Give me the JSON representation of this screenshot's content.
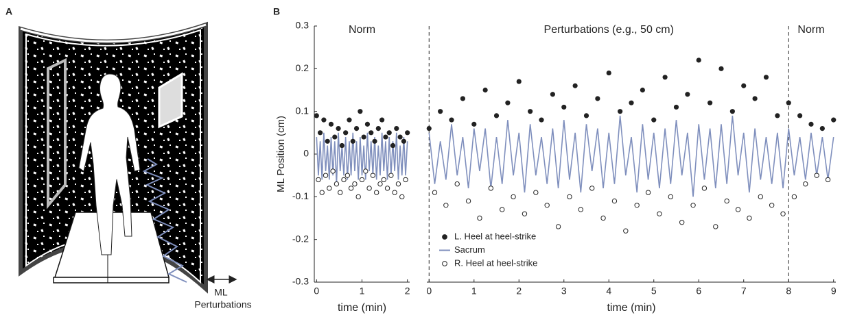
{
  "panels": {
    "a": {
      "label": "A",
      "arrow_label": "ML",
      "arrow_sublabel": "Perturbations"
    },
    "b": {
      "label": "B"
    }
  },
  "chart_data": [
    {
      "type": "scatter",
      "ylabel": "ML Position (cm)",
      "xlabel": "time (min)",
      "xlim": [
        -0.05,
        2.05
      ],
      "xticks": [
        0,
        1,
        2
      ],
      "ylim": [
        -0.3,
        0.3
      ],
      "yticks": [
        0.3,
        0.2,
        0.1,
        0,
        -0.1,
        -0.2,
        -0.3
      ],
      "regions": [
        {
          "label": "Norm",
          "start": 0,
          "end": 2
        }
      ],
      "series": [
        {
          "style": "line",
          "color": "#7f8fbd",
          "x": [
            0,
            0.04,
            0.08,
            0.12,
            0.16,
            0.2,
            0.24,
            0.28,
            0.32,
            0.36,
            0.4,
            0.44,
            0.48,
            0.52,
            0.56,
            0.6,
            0.64,
            0.68,
            0.72,
            0.76,
            0.8,
            0.84,
            0.88,
            0.92,
            0.96,
            1,
            1.04,
            1.08,
            1.12,
            1.16,
            1.2,
            1.24,
            1.28,
            1.32,
            1.36,
            1.4,
            1.44,
            1.48,
            1.52,
            1.56,
            1.6,
            1.64,
            1.68,
            1.72,
            1.76,
            1.8,
            1.84,
            1.88,
            1.92,
            1.96,
            2
          ],
          "values": [
            0.04,
            -0.05,
            0.03,
            -0.06,
            0.05,
            -0.04,
            0.02,
            -0.06,
            0.04,
            -0.05,
            0.03,
            -0.07,
            0.05,
            -0.04,
            0.02,
            -0.05,
            0.04,
            -0.06,
            0.03,
            -0.05,
            0.05,
            -0.04,
            0.03,
            -0.06,
            0.04,
            -0.05,
            0.02,
            -0.06,
            0.05,
            -0.04,
            0.03,
            -0.05,
            0.04,
            -0.06,
            0.02,
            -0.05,
            0.05,
            -0.04,
            0.03,
            -0.06,
            0.04,
            -0.05,
            0.03,
            -0.04,
            0.05,
            -0.06,
            0.02,
            -0.05,
            0.04,
            -0.05,
            0.03
          ]
        },
        {
          "style": "dot",
          "color": "#222222",
          "x": [
            0,
            0.08,
            0.16,
            0.24,
            0.32,
            0.4,
            0.48,
            0.56,
            0.64,
            0.72,
            0.8,
            0.88,
            0.96,
            1.04,
            1.12,
            1.2,
            1.28,
            1.36,
            1.44,
            1.52,
            1.6,
            1.68,
            1.76,
            1.84,
            1.92,
            2
          ],
          "values": [
            0.09,
            0.05,
            0.08,
            0.03,
            0.07,
            0.04,
            0.06,
            0.02,
            0.05,
            0.08,
            0.03,
            0.06,
            0.1,
            0.04,
            0.07,
            0.05,
            0.03,
            0.06,
            0.08,
            0.04,
            0.05,
            0.02,
            0.06,
            0.04,
            0.03,
            0.05
          ]
        },
        {
          "style": "circle",
          "color": "#222222",
          "x": [
            0.04,
            0.12,
            0.2,
            0.28,
            0.36,
            0.44,
            0.52,
            0.6,
            0.68,
            0.76,
            0.84,
            0.92,
            1,
            1.08,
            1.16,
            1.24,
            1.32,
            1.4,
            1.48,
            1.56,
            1.64,
            1.72,
            1.8,
            1.88,
            1.96
          ],
          "values": [
            -0.06,
            -0.09,
            -0.05,
            -0.08,
            -0.04,
            -0.07,
            -0.09,
            -0.06,
            -0.05,
            -0.08,
            -0.07,
            -0.1,
            -0.06,
            -0.04,
            -0.08,
            -0.05,
            -0.09,
            -0.07,
            -0.06,
            -0.08,
            -0.05,
            -0.09,
            -0.07,
            -0.1,
            -0.06
          ]
        }
      ]
    },
    {
      "type": "scatter",
      "xlabel": "time (min)",
      "xlim": [
        -0.05,
        9.05
      ],
      "xticks": [
        0,
        1,
        2,
        3,
        4,
        5,
        6,
        7,
        8,
        9
      ],
      "ylim": [
        -0.3,
        0.3
      ],
      "regions": [
        {
          "label": "Perturbations (e.g., 50 cm)",
          "start": 0,
          "end": 8
        },
        {
          "label": "Norm",
          "start": 8,
          "end": 9
        }
      ],
      "boundaries": [
        0,
        8
      ],
      "legend": "lower left",
      "series": [
        {
          "name": "Sacrum",
          "style": "line",
          "color": "#7f8fbd",
          "x": [
            0,
            0.125,
            0.25,
            0.375,
            0.5,
            0.625,
            0.75,
            0.875,
            1,
            1.125,
            1.25,
            1.375,
            1.5,
            1.625,
            1.75,
            1.875,
            2,
            2.125,
            2.25,
            2.375,
            2.5,
            2.625,
            2.75,
            2.875,
            3,
            3.125,
            3.25,
            3.375,
            3.5,
            3.625,
            3.75,
            3.875,
            4,
            4.125,
            4.25,
            4.375,
            4.5,
            4.625,
            4.75,
            4.875,
            5,
            5.125,
            5.25,
            5.375,
            5.5,
            5.625,
            5.75,
            5.875,
            6,
            6.125,
            6.25,
            6.375,
            6.5,
            6.625,
            6.75,
            6.875,
            7,
            7.125,
            7.25,
            7.375,
            7.5,
            7.625,
            7.75,
            7.875,
            8,
            8.125,
            8.25,
            8.375,
            8.5,
            8.625,
            8.75,
            8.875,
            9
          ],
          "values": [
            0.05,
            -0.07,
            0.03,
            -0.06,
            0.07,
            -0.05,
            0.04,
            -0.08,
            0.06,
            -0.04,
            0.06,
            -0.08,
            0.04,
            -0.07,
            0.08,
            -0.05,
            0.05,
            -0.09,
            0.07,
            -0.05,
            0.04,
            -0.07,
            0.06,
            -0.08,
            0.08,
            -0.06,
            0.05,
            -0.09,
            0.07,
            -0.04,
            0.06,
            -0.08,
            0.05,
            -0.07,
            0.09,
            -0.05,
            0.04,
            -0.09,
            0.07,
            -0.06,
            0.05,
            -0.08,
            0.06,
            -0.07,
            0.08,
            -0.05,
            0.05,
            -0.1,
            0.07,
            -0.06,
            0.06,
            -0.08,
            0.07,
            -0.07,
            0.09,
            -0.05,
            0.05,
            -0.09,
            0.06,
            -0.06,
            0.04,
            -0.07,
            0.05,
            -0.08,
            0.06,
            -0.05,
            0.04,
            -0.06,
            0.05,
            -0.05,
            0.04,
            -0.06,
            0.04
          ]
        },
        {
          "name": "L. Heel at heel-strike",
          "style": "dot",
          "color": "#222222",
          "x": [
            0,
            0.25,
            0.5,
            0.75,
            1,
            1.25,
            1.5,
            1.75,
            2,
            2.25,
            2.5,
            2.75,
            3,
            3.25,
            3.5,
            3.75,
            4,
            4.25,
            4.5,
            4.75,
            5,
            5.25,
            5.5,
            5.75,
            6,
            6.25,
            6.5,
            6.75,
            7,
            7.25,
            7.5,
            7.75,
            8,
            8.25,
            8.5,
            8.75,
            9
          ],
          "values": [
            0.06,
            0.1,
            0.08,
            0.13,
            0.07,
            0.15,
            0.09,
            0.12,
            0.17,
            0.1,
            0.08,
            0.14,
            0.11,
            0.16,
            0.09,
            0.13,
            0.19,
            0.1,
            0.12,
            0.15,
            0.08,
            0.18,
            0.11,
            0.14,
            0.22,
            0.12,
            0.2,
            0.1,
            0.16,
            0.13,
            0.18,
            0.09,
            0.12,
            0.09,
            0.07,
            0.06,
            0.08
          ]
        },
        {
          "name": "R. Heel at heel-strike",
          "style": "circle",
          "color": "#222222",
          "x": [
            0.125,
            0.375,
            0.625,
            0.875,
            1.125,
            1.375,
            1.625,
            1.875,
            2.125,
            2.375,
            2.625,
            2.875,
            3.125,
            3.375,
            3.625,
            3.875,
            4.125,
            4.375,
            4.625,
            4.875,
            5.125,
            5.375,
            5.625,
            5.875,
            6.125,
            6.375,
            6.625,
            6.875,
            7.125,
            7.375,
            7.625,
            7.875,
            8.125,
            8.375,
            8.625,
            8.875
          ],
          "values": [
            -0.09,
            -0.12,
            -0.07,
            -0.11,
            -0.15,
            -0.08,
            -0.13,
            -0.1,
            -0.14,
            -0.09,
            -0.12,
            -0.17,
            -0.1,
            -0.13,
            -0.08,
            -0.15,
            -0.11,
            -0.18,
            -0.12,
            -0.09,
            -0.14,
            -0.1,
            -0.16,
            -0.12,
            -0.08,
            -0.17,
            -0.11,
            -0.13,
            -0.15,
            -0.1,
            -0.12,
            -0.14,
            -0.1,
            -0.07,
            -0.05,
            -0.06
          ]
        }
      ]
    }
  ]
}
